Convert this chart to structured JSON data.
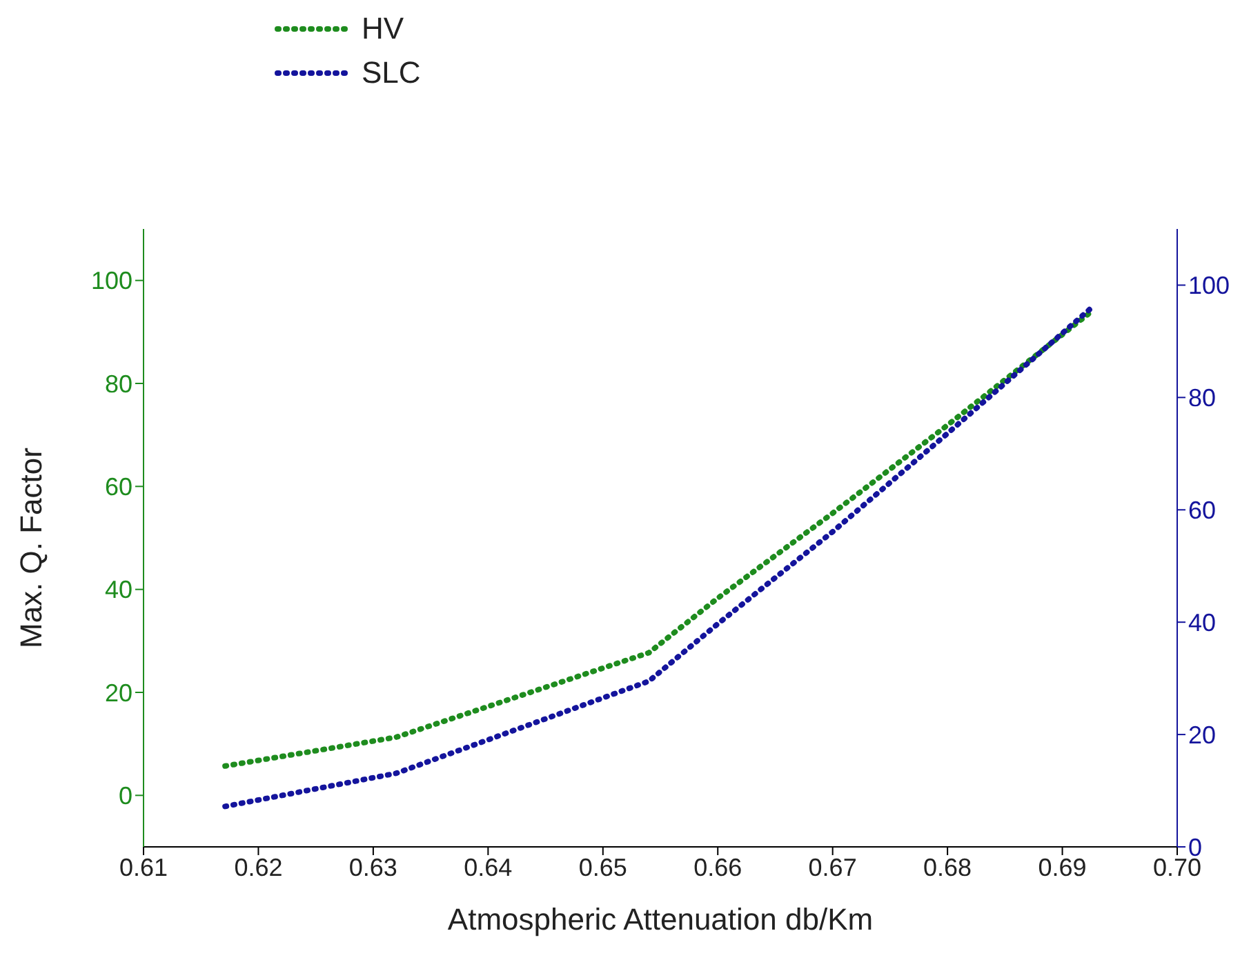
{
  "chart_data": {
    "type": "line",
    "xlabel": "Atmospheric Attenuation db/Km",
    "ylabel": "Max. Q. Factor",
    "x": [
      0.6171,
      0.632,
      0.654,
      0.66,
      0.67,
      0.68,
      0.6925
    ],
    "series": [
      {
        "name": "HV",
        "color": "#1e8c1e",
        "values": [
          5.7,
          11.3,
          27.7,
          38.3,
          54.8,
          71.9,
          93.9
        ]
      },
      {
        "name": "SLC",
        "color": "#14149c",
        "axis": "y2",
        "values": [
          7.2,
          13.1,
          29.5,
          39.7,
          56.1,
          73.6,
          95.9
        ]
      }
    ],
    "xlim": [
      0.61,
      0.7
    ],
    "xticks": [
      0.61,
      0.62,
      0.63,
      0.64,
      0.65,
      0.66,
      0.67,
      0.68,
      0.69,
      {
        "value": 0.7,
        "label": "0.70"
      }
    ],
    "ylim": [
      -10,
      110
    ],
    "yticks": [
      0,
      20,
      40,
      60,
      80,
      100
    ],
    "y2lim": [
      0,
      110
    ],
    "y2ticks": [
      0,
      20,
      40,
      60,
      80,
      100
    ],
    "grid": false,
    "legend": "top",
    "line_style": "dotted",
    "marker": "none"
  }
}
